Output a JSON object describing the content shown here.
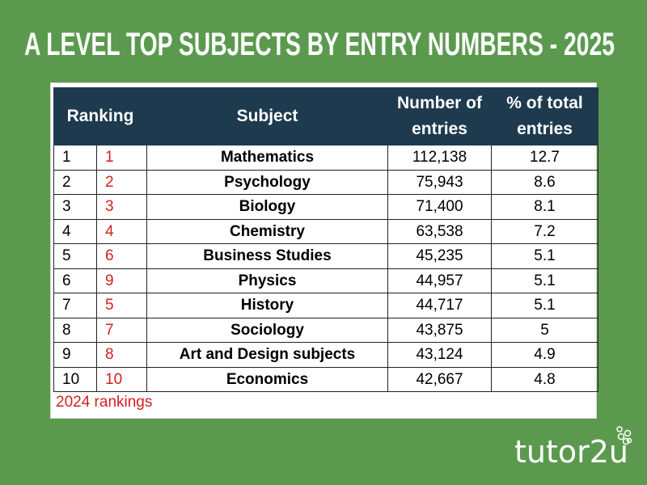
{
  "header": {
    "title": "A LEVEL TOP SUBJECTS BY ENTRY NUMBERS - 2025"
  },
  "table": {
    "columns": [
      "Ranking",
      "Subject",
      "Number of entries",
      "% of total entries"
    ],
    "rows": [
      [
        "1",
        "1",
        "Mathematics",
        "112,138",
        "12.7"
      ],
      [
        "2",
        "2",
        "Psychology",
        "75,943",
        "8.6"
      ],
      [
        "3",
        "3",
        "Biology",
        "71,400",
        "8.1"
      ],
      [
        "4",
        "4",
        "Chemistry",
        "63,538",
        "7.2"
      ],
      [
        "5",
        "6",
        "Business Studies",
        "45,235",
        "5.1"
      ],
      [
        "6",
        "9",
        "Physics",
        "44,957",
        "5.1"
      ],
      [
        "7",
        "5",
        "History",
        "44,717",
        "5.1"
      ],
      [
        "8",
        "7",
        "Sociology",
        "43,875",
        "5"
      ],
      [
        "9",
        "8",
        "Art and Design subjects",
        "43,124",
        "4.9"
      ],
      [
        "10",
        "10",
        "Economics",
        "42,667",
        "4.8"
      ]
    ],
    "footnote": "2024 rankings"
  },
  "logo": {
    "text": "tutor2u"
  }
}
